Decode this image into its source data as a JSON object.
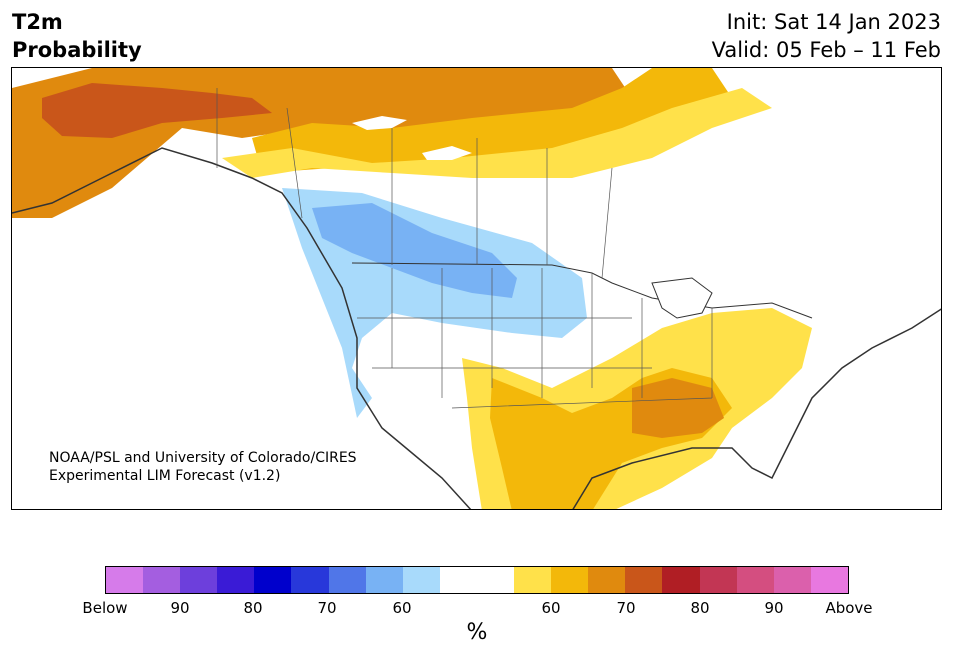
{
  "title": {
    "variable": "T2m",
    "quantity": "Probability",
    "init": "Init: Sat 14 Jan 2023",
    "valid": "Valid: 05 Feb – 11 Feb"
  },
  "credit": {
    "line1": "NOAA/PSL and University of Colorado/CIRES",
    "line2": "Experimental LIM Forecast (v1.2)"
  },
  "colorbar": {
    "unit": "%",
    "colors": [
      "#d67bea",
      "#a45ee0",
      "#6d3fdc",
      "#3a1bd6",
      "#0000cc",
      "#2838da",
      "#5076e8",
      "#78b2f4",
      "#a8dafb",
      "#ffffff",
      "#ffffff",
      "#ffe14a",
      "#f3b80a",
      "#e08a0e",
      "#c9561a",
      "#b01e24",
      "#c23654",
      "#d44e80",
      "#db60ac",
      "#e878e0"
    ],
    "tick_labels": [
      "Below",
      "90",
      "80",
      "70",
      "60",
      "60",
      "70",
      "80",
      "90",
      "Above"
    ]
  },
  "map_legend": {
    "below_levels": [
      "60",
      "70"
    ],
    "above_levels": [
      "60",
      "70",
      "80"
    ]
  }
}
